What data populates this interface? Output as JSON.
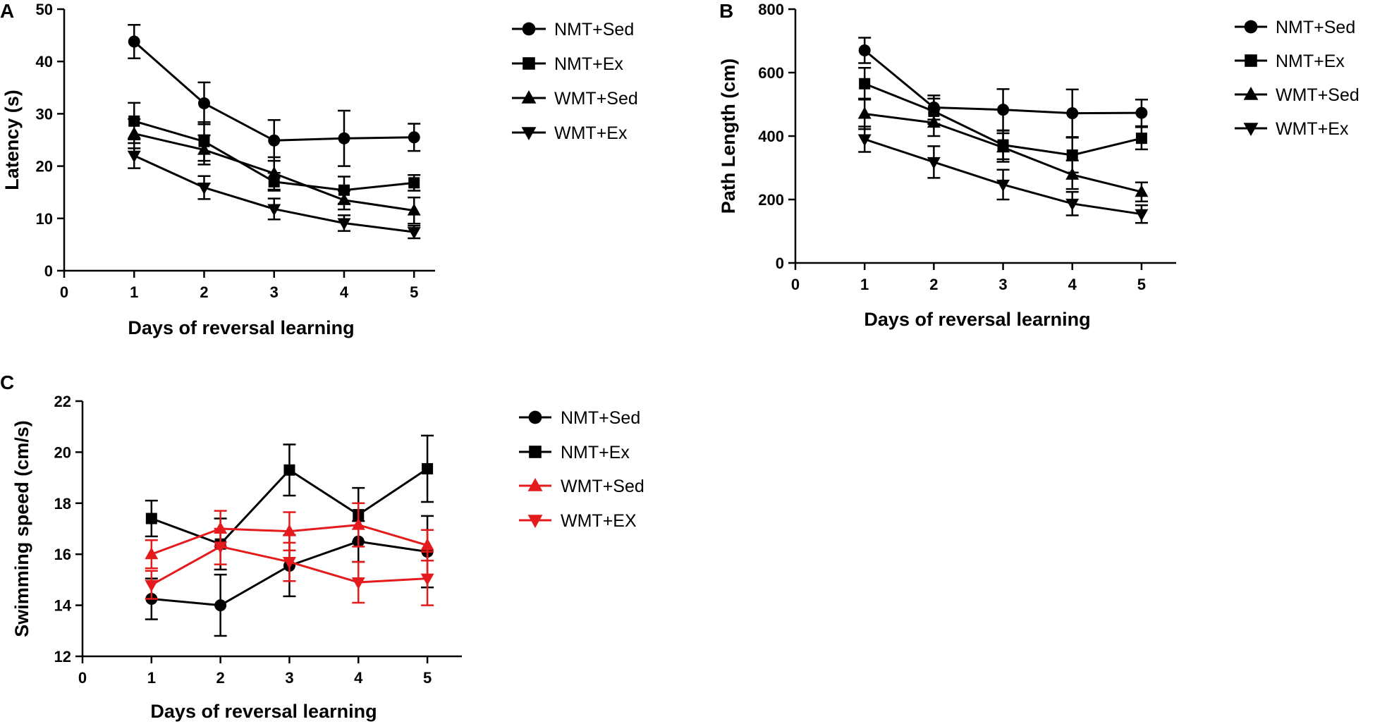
{
  "figure": {
    "panels": [
      {
        "label": "A",
        "chart_data": {
          "type": "line",
          "title": "",
          "xlabel": "Days of reversal learning",
          "ylabel": "Latency (s)",
          "xlim": [
            0,
            5.3
          ],
          "ylim": [
            0,
            50
          ],
          "x_ticks": [
            0,
            1,
            2,
            3,
            4,
            5
          ],
          "y_ticks": [
            0,
            10,
            20,
            30,
            40,
            50
          ],
          "legend": "right",
          "grid": false,
          "series": [
            {
              "name": "NMT+Sed",
              "marker": "circle",
              "color": "#000000",
              "x": [
                1,
                2,
                3,
                4,
                5
              ],
              "y": [
                43.8,
                32.0,
                24.9,
                25.3,
                25.5
              ],
              "error": [
                3.2,
                4.0,
                3.9,
                5.3,
                2.6
              ]
            },
            {
              "name": "NMT+Ex",
              "marker": "square",
              "color": "#000000",
              "x": [
                1,
                2,
                3,
                4,
                5
              ],
              "y": [
                28.6,
                24.7,
                17.0,
                15.4,
                16.8
              ],
              "error": [
                3.5,
                3.7,
                1.7,
                2.6,
                1.5
              ]
            },
            {
              "name": "WMT+Sed",
              "marker": "triangle-up",
              "color": "#000000",
              "x": [
                1,
                2,
                3,
                4,
                5
              ],
              "y": [
                26.2,
                23.1,
                18.6,
                13.5,
                11.5
              ],
              "error": [
                2.8,
                2.8,
                3.1,
                1.8,
                2.5
              ]
            },
            {
              "name": "WMT+Ex",
              "marker": "triangle-down",
              "color": "#000000",
              "x": [
                1,
                2,
                3,
                4,
                5
              ],
              "y": [
                22.0,
                15.9,
                11.8,
                9.1,
                7.4
              ],
              "error": [
                2.4,
                2.2,
                2.0,
                1.5,
                1.2
              ]
            }
          ]
        }
      },
      {
        "label": "B",
        "chart_data": {
          "type": "line",
          "title": "",
          "xlabel": "Days of reversal learning",
          "ylabel": "Path Length (cm)",
          "xlim": [
            0,
            5.5
          ],
          "ylim": [
            0,
            800
          ],
          "x_ticks": [
            0,
            1,
            2,
            3,
            4,
            5
          ],
          "y_ticks": [
            0,
            200,
            400,
            600,
            800
          ],
          "legend": "right",
          "grid": false,
          "series": [
            {
              "name": "NMT+Sed",
              "marker": "circle",
              "color": "#000000",
              "x": [
                1,
                2,
                3,
                4,
                5
              ],
              "y": [
                670,
                490,
                483,
                472,
                473
              ],
              "error": [
                40,
                38,
                65,
                75,
                42
              ]
            },
            {
              "name": "NMT+Ex",
              "marker": "square",
              "color": "#000000",
              "x": [
                1,
                2,
                3,
                4,
                5
              ],
              "y": [
                565,
                478,
                372,
                340,
                393
              ],
              "error": [
                50,
                40,
                45,
                55,
                35
              ]
            },
            {
              "name": "WMT+Sed",
              "marker": "triangle-up",
              "color": "#000000",
              "x": [
                1,
                2,
                3,
                4,
                5
              ],
              "y": [
                470,
                442,
                364,
                278,
                224
              ],
              "error": [
                48,
                42,
                45,
                45,
                30
              ]
            },
            {
              "name": "WMT+Ex",
              "marker": "triangle-down",
              "color": "#000000",
              "x": [
                1,
                2,
                3,
                4,
                5
              ],
              "y": [
                390,
                318,
                247,
                187,
                154
              ],
              "error": [
                40,
                50,
                47,
                37,
                28
              ]
            }
          ]
        }
      },
      {
        "label": "C",
        "chart_data": {
          "type": "line",
          "title": "",
          "xlabel": "Days of reversal learning",
          "ylabel": "Swimming speed (cm/s)",
          "xlim": [
            0,
            5.5
          ],
          "ylim": [
            12,
            22
          ],
          "x_ticks": [
            0,
            1,
            2,
            3,
            4,
            5
          ],
          "y_ticks": [
            12,
            14,
            16,
            18,
            20,
            22
          ],
          "legend": "right",
          "grid": false,
          "series": [
            {
              "name": "NMT+Sed",
              "marker": "circle",
              "color": "#000000",
              "x": [
                1,
                2,
                3,
                4,
                5
              ],
              "y": [
                14.25,
                14.0,
                15.55,
                16.5,
                16.1
              ],
              "error": [
                0.8,
                1.2,
                1.2,
                0.8,
                1.4
              ]
            },
            {
              "name": "NMT+Ex",
              "marker": "square",
              "color": "#000000",
              "x": [
                1,
                2,
                3,
                4,
                5
              ],
              "y": [
                17.4,
                16.4,
                19.3,
                17.55,
                19.35
              ],
              "error": [
                0.7,
                1.0,
                1.0,
                1.05,
                1.3
              ]
            },
            {
              "name": "WMT+Sed",
              "marker": "triangle-up",
              "color": "#e41a1c",
              "x": [
                1,
                2,
                3,
                4,
                5
              ],
              "y": [
                16.0,
                17.0,
                16.9,
                17.15,
                16.35
              ],
              "error": [
                0.55,
                0.7,
                0.75,
                0.85,
                0.6
              ]
            },
            {
              "name": "WMT+EX",
              "marker": "triangle-down",
              "color": "#e41a1c",
              "x": [
                1,
                2,
                3,
                4,
                5
              ],
              "y": [
                14.8,
                16.3,
                15.7,
                14.9,
                15.05
              ],
              "error": [
                0.55,
                0.7,
                0.75,
                0.8,
                1.05
              ]
            }
          ]
        }
      }
    ]
  }
}
